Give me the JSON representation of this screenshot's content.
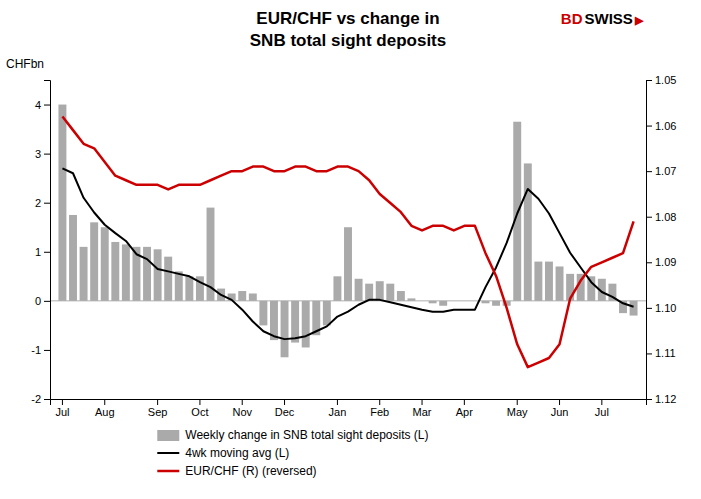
{
  "chart_data": {
    "type": "bar",
    "title": "EUR/CHF vs change in",
    "subtitle": "SNB total sight deposits",
    "y_label": "CHFbn",
    "annotations": [
      {
        "text": "BD",
        "color": "#cc0000"
      },
      {
        "text": "SWISS",
        "color": "#000000"
      },
      {
        "text": "▶",
        "color": "#cc0000"
      }
    ],
    "categories": [
      "Jul",
      null,
      null,
      null,
      "Aug",
      null,
      null,
      null,
      null,
      "Sep",
      null,
      null,
      null,
      "Oct",
      null,
      null,
      null,
      "Nov",
      null,
      null,
      null,
      "Dec",
      null,
      null,
      null,
      null,
      "Jan",
      null,
      null,
      null,
      "Feb",
      null,
      null,
      null,
      "Mar",
      null,
      null,
      null,
      "Apr",
      null,
      null,
      null,
      null,
      "May",
      null,
      null,
      null,
      "Jun",
      null,
      null,
      null,
      "Jul",
      null,
      null,
      null
    ],
    "series": [
      {
        "name": "Weekly change in SNB total sight deposits (L)",
        "type": "bar",
        "color": "#aaaaaa",
        "values": [
          4.0,
          1.75,
          1.1,
          1.6,
          1.5,
          1.2,
          1.15,
          1.1,
          1.1,
          1.05,
          0.9,
          0.6,
          0.5,
          0.5,
          1.9,
          0.25,
          0.15,
          0.2,
          0.15,
          -0.5,
          -0.8,
          -1.15,
          -0.85,
          -0.95,
          -0.7,
          -0.5,
          0.5,
          1.5,
          0.45,
          0.35,
          0.4,
          0.35,
          0.2,
          0.05,
          0.0,
          -0.05,
          -0.1,
          0.0,
          0.0,
          0.0,
          -0.05,
          -0.1,
          -0.1,
          3.65,
          2.8,
          0.8,
          0.8,
          0.7,
          0.55,
          0.55,
          0.5,
          0.45,
          0.35,
          -0.25,
          -0.3
        ]
      },
      {
        "name": "4wk moving avg (L)",
        "type": "line",
        "color": "#000000",
        "values": [
          2.7,
          2.6,
          2.1,
          1.8,
          1.55,
          1.38,
          1.22,
          0.95,
          0.85,
          0.65,
          0.6,
          0.55,
          0.5,
          0.38,
          0.28,
          0.12,
          0.02,
          -0.18,
          -0.42,
          -0.62,
          -0.72,
          -0.78,
          -0.76,
          -0.72,
          -0.62,
          -0.52,
          -0.32,
          -0.22,
          -0.08,
          0.02,
          0.02,
          -0.03,
          -0.08,
          -0.13,
          -0.18,
          -0.22,
          -0.22,
          -0.18,
          -0.18,
          -0.18,
          0.28,
          0.68,
          1.18,
          1.78,
          2.28,
          2.08,
          1.78,
          1.38,
          0.98,
          0.68,
          0.38,
          0.18,
          0.08,
          -0.05,
          -0.12
        ]
      },
      {
        "name": "EUR/CHF (R) (reversed)",
        "type": "line",
        "color": "#cc0000",
        "axis": "y2",
        "values": [
          1.058,
          1.061,
          1.064,
          1.065,
          1.068,
          1.071,
          1.072,
          1.073,
          1.073,
          1.073,
          1.074,
          1.073,
          1.073,
          1.073,
          1.072,
          1.071,
          1.07,
          1.07,
          1.069,
          1.069,
          1.07,
          1.07,
          1.069,
          1.069,
          1.07,
          1.07,
          1.069,
          1.069,
          1.07,
          1.072,
          1.075,
          1.077,
          1.079,
          1.082,
          1.083,
          1.082,
          1.082,
          1.083,
          1.082,
          1.082,
          1.088,
          1.093,
          1.1,
          1.108,
          1.113,
          1.112,
          1.111,
          1.108,
          1.098,
          1.094,
          1.091,
          1.09,
          1.089,
          1.088,
          1.081
        ]
      }
    ],
    "ylim": [
      -2,
      4.5
    ],
    "yticks": [
      -2,
      -1,
      0,
      1,
      2,
      3,
      4
    ],
    "y2lim": [
      1.12,
      1.05
    ],
    "y2ticks": [
      1.05,
      1.06,
      1.07,
      1.08,
      1.09,
      {
        "value": 1.1,
        "label": "1.10"
      },
      1.11,
      1.12
    ],
    "grid": false,
    "legend": "bottom"
  }
}
